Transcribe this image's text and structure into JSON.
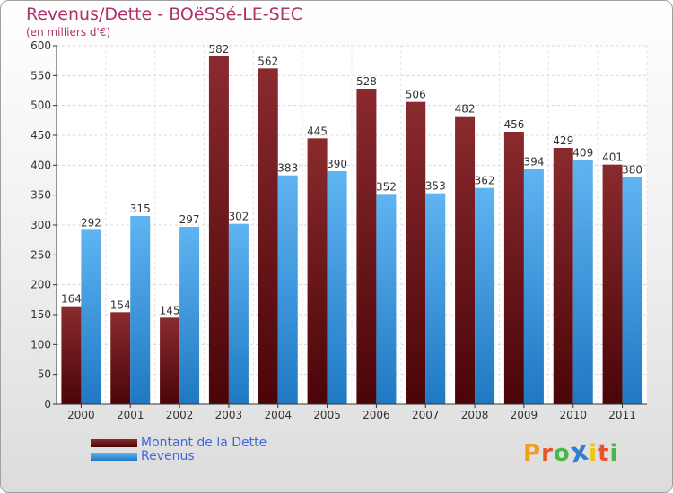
{
  "header": {
    "title": "Revenus/Dette - BOëSSé-LE-SEC",
    "subtitle": "(en milliers d'€)"
  },
  "chart_data": {
    "type": "bar",
    "categories": [
      "2000",
      "2001",
      "2002",
      "2003",
      "2004",
      "2005",
      "2006",
      "2007",
      "2008",
      "2009",
      "2010",
      "2011"
    ],
    "series": [
      {
        "name": "Montant de la Dette",
        "color": "#7a1e22",
        "values": [
          164,
          154,
          145,
          582,
          562,
          445,
          528,
          506,
          482,
          456,
          429,
          401
        ]
      },
      {
        "name": "Revenus",
        "color": "#4aa3e8",
        "values": [
          292,
          315,
          297,
          302,
          383,
          390,
          352,
          353,
          362,
          394,
          409,
          380
        ]
      }
    ],
    "yticks": [
      0,
      50,
      100,
      150,
      200,
      250,
      300,
      350,
      400,
      450,
      500,
      550,
      600
    ],
    "ylim": [
      0,
      600
    ],
    "grid": true,
    "legend_position": "bottom-left"
  },
  "legend": {
    "items": [
      {
        "label": "Montant de la Dette",
        "color": "#7a1e22"
      },
      {
        "label": "Revenus",
        "color": "#4aa3e8"
      }
    ]
  },
  "logo": {
    "letters": [
      "P",
      "r",
      "o",
      "x",
      "i",
      "t",
      "i"
    ],
    "colors": [
      "#f39c1f",
      "#e8542a",
      "#4bb749",
      "#2f7fd4",
      "#f1c40f",
      "#e8542a",
      "#4bb749"
    ]
  }
}
